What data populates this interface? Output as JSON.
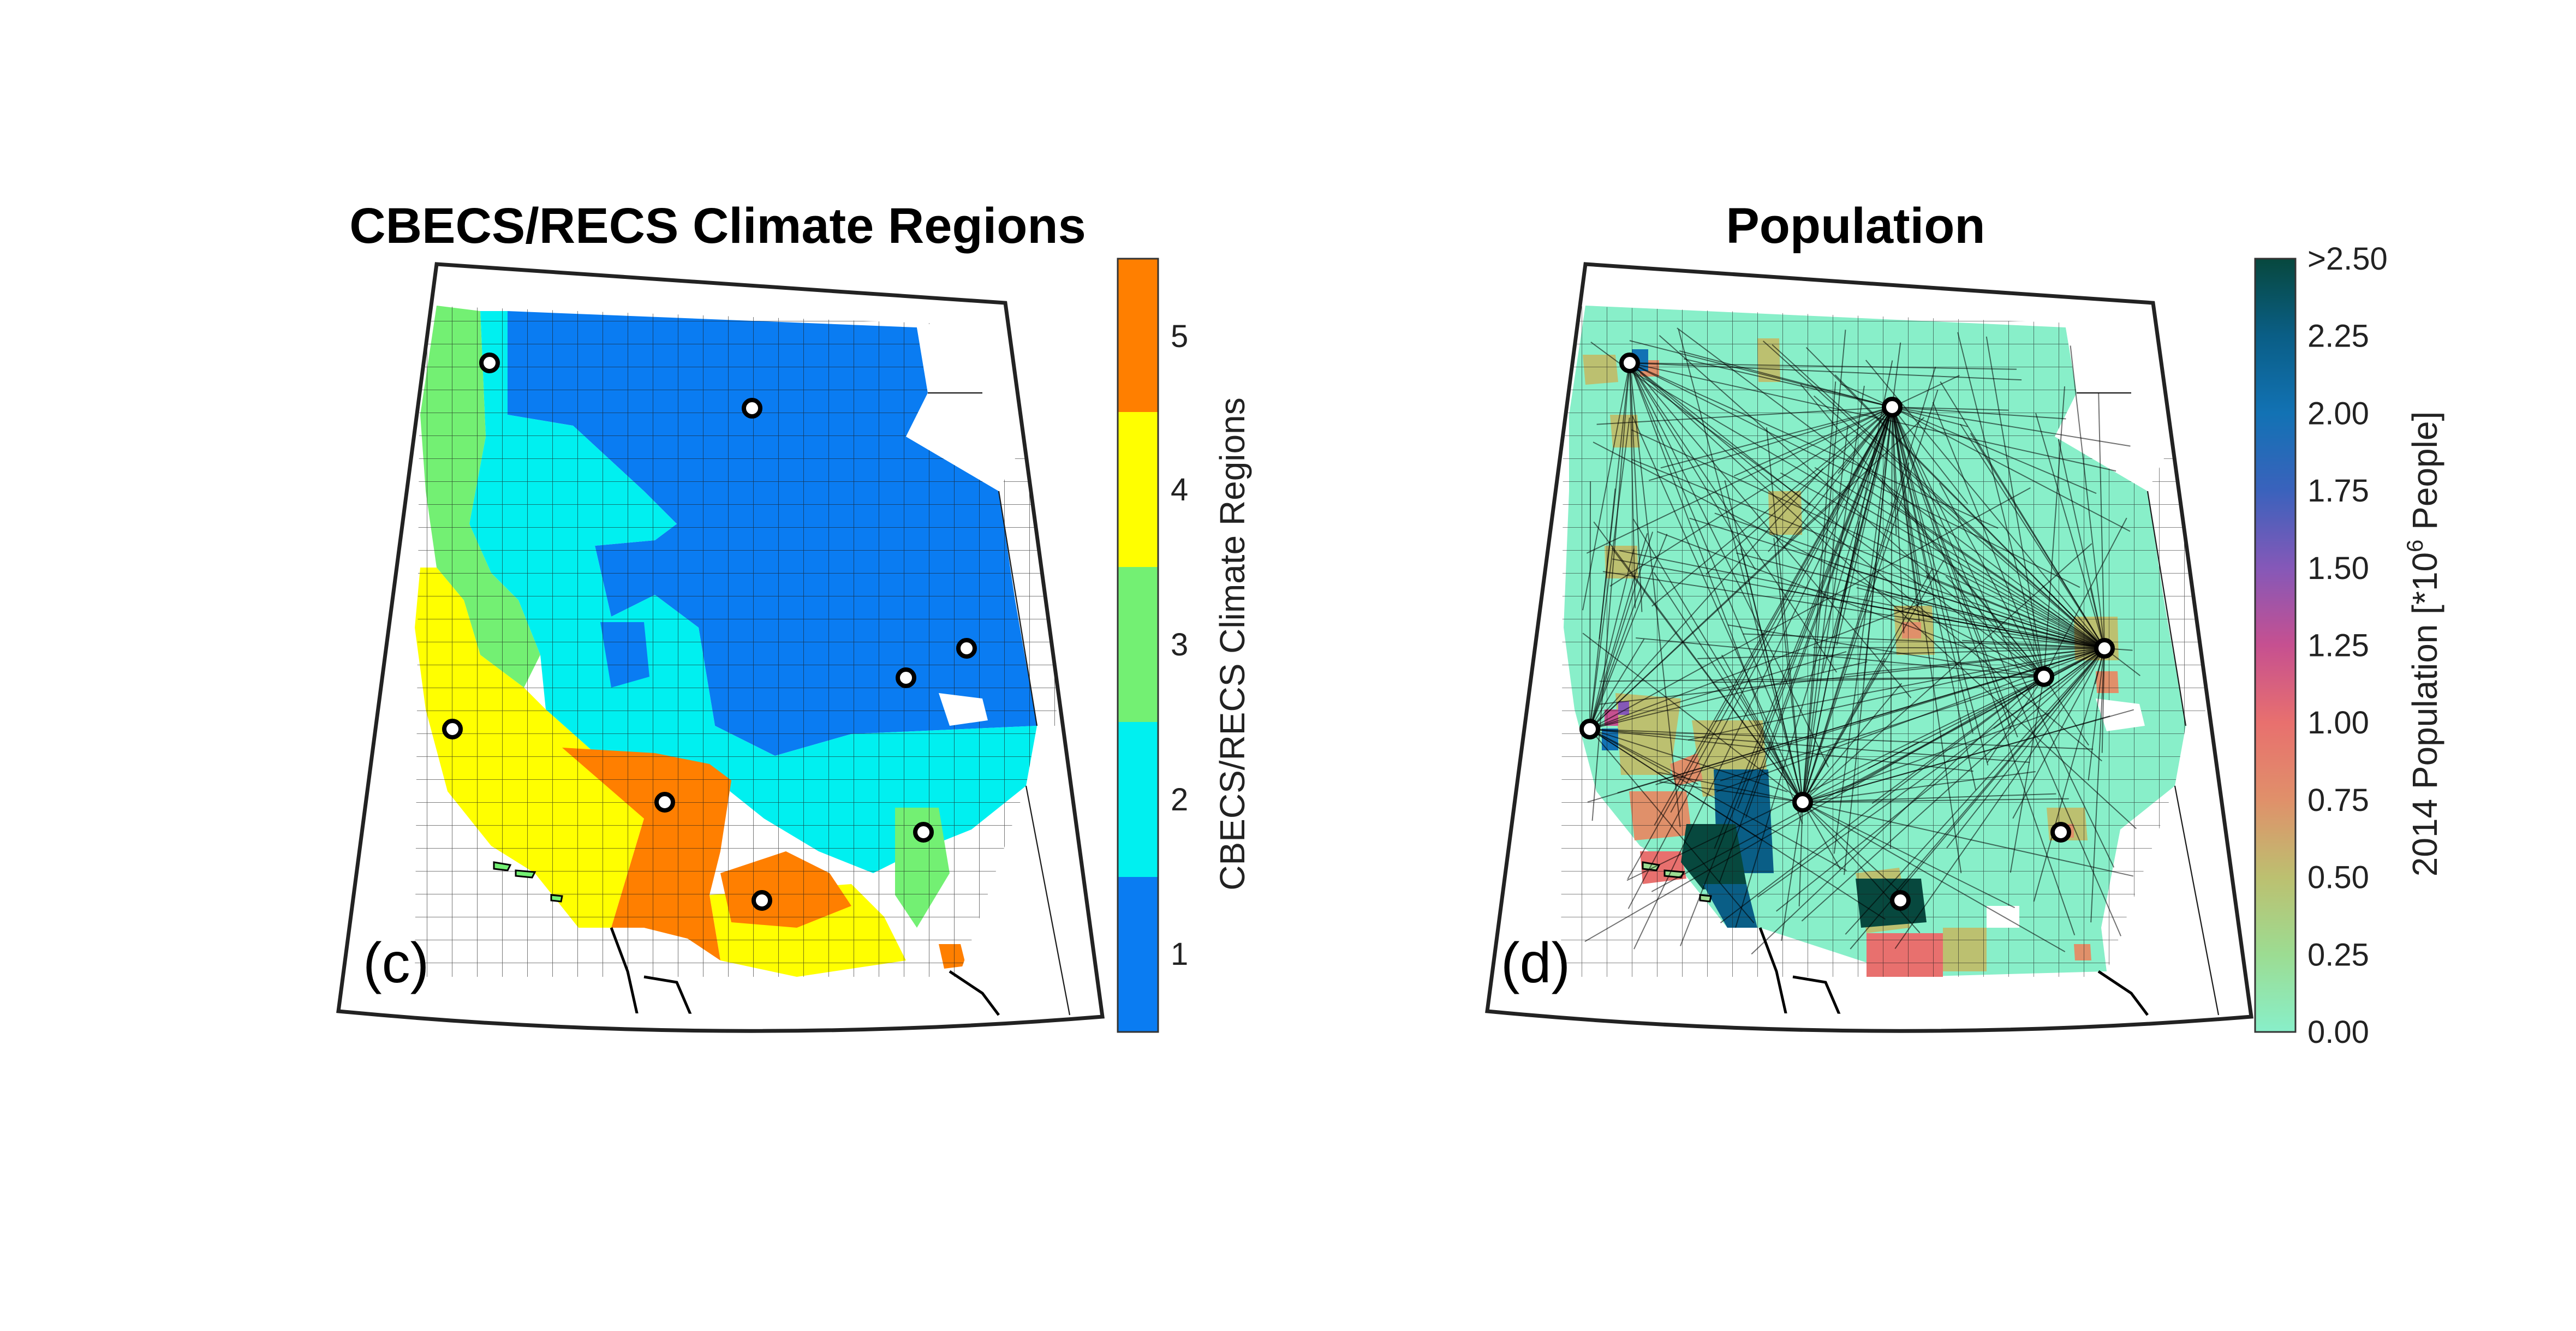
{
  "panels": [
    {
      "id": "c",
      "title": "CBECS/RECS Climate Regions",
      "panel_label": "(c)",
      "colorbar": {
        "label": "CBECS/RECS Climate Regions",
        "ticks": [
          "1",
          "2",
          "3",
          "4",
          "5"
        ],
        "colors": [
          "#0a7cf2",
          "#00f0f0",
          "#73f073",
          "#ffff00",
          "#ff7f00"
        ]
      }
    },
    {
      "id": "d",
      "title": "Population",
      "panel_label": "(d)",
      "colorbar": {
        "label_prefix": "2014 Population [*10",
        "label_exp": "6",
        "label_suffix": " People]",
        "ticks": [
          "0.00",
          "0.25",
          "0.50",
          "0.75",
          "1.00",
          "1.25",
          "1.50",
          "1.75",
          "2.00",
          "2.25",
          ">2.50"
        ],
        "colors": [
          "#88efc9",
          "#9cdc92",
          "#bcc070",
          "#e0906a",
          "#e8706e",
          "#c65090",
          "#8558b8",
          "#3a62bc",
          "#1272b4",
          "#0a5e86",
          "#07483e"
        ]
      }
    }
  ],
  "colors": {
    "region_1": "#0a7cf2",
    "region_2": "#00f0f0",
    "region_3": "#73f073",
    "region_4": "#ffff00",
    "region_5": "#ff7f00",
    "population_base": "#88efc9"
  }
}
